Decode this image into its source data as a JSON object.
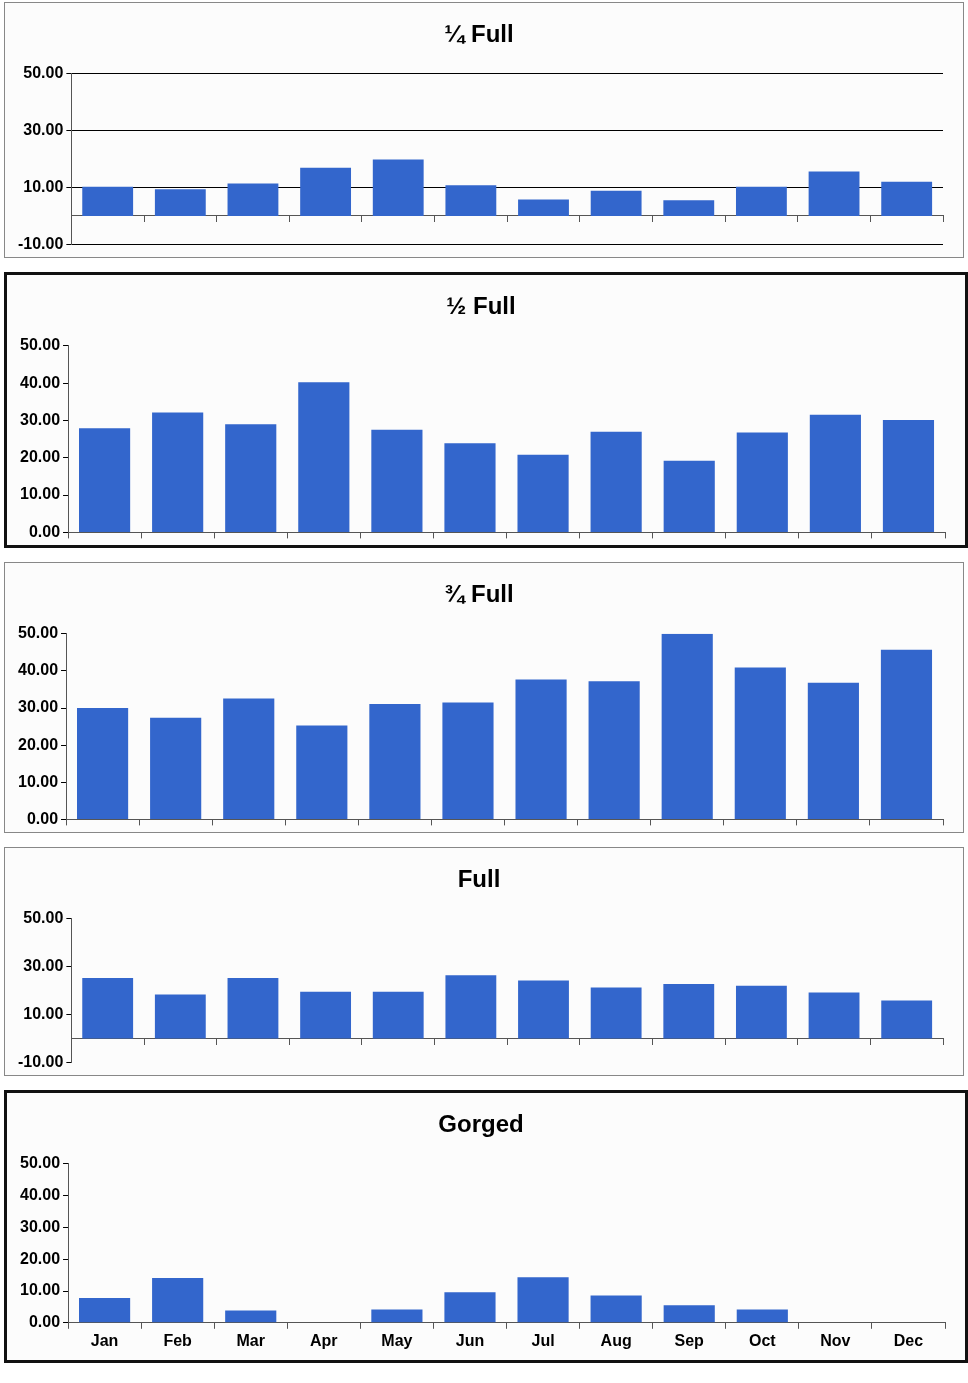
{
  "chart_data": [
    {
      "type": "bar",
      "title": "¼ Full",
      "categories": [
        null,
        null,
        null,
        null,
        null,
        null,
        null,
        null,
        null,
        null,
        null,
        null
      ],
      "color": "#3366cc",
      "values": [
        10.3,
        9.4,
        11.4,
        17,
        19.9,
        10.8,
        5.8,
        8.9,
        5.5,
        10.3,
        15.6,
        12
      ],
      "ylim": [
        -10,
        50
      ],
      "yticks": [
        {
          "value": -10,
          "label": "-10.00"
        },
        {
          "value": 10,
          "label": "10.00"
        },
        {
          "value": 30,
          "label": "30.00"
        },
        {
          "value": 50,
          "label": "50.00"
        }
      ],
      "grid": "y",
      "tick_labels": "y"
    },
    {
      "type": "bar",
      "title": "½ Full",
      "categories": [
        null,
        null,
        null,
        null,
        null,
        null,
        null,
        null,
        null,
        null,
        null,
        null
      ],
      "color": "#3366cc",
      "values": [
        27.9,
        32.1,
        29,
        40.2,
        27.5,
        23.9,
        20.8,
        27,
        19.2,
        26.8,
        31.5,
        30.1
      ],
      "ylim": [
        0,
        50
      ],
      "yticks": [
        {
          "value": 0,
          "label": "0.00"
        },
        {
          "value": 10,
          "label": "10.00"
        },
        {
          "value": 20,
          "label": "20.00"
        },
        {
          "value": 30,
          "label": "30.00"
        },
        {
          "value": 40,
          "label": "40.00"
        },
        {
          "value": 50,
          "label": "50.00"
        }
      ],
      "tick_labels": "y"
    },
    {
      "type": "bar",
      "title": "¾ Full",
      "categories": [
        null,
        null,
        null,
        null,
        null,
        null,
        null,
        null,
        null,
        null,
        null,
        null
      ],
      "color": "#3366cc",
      "values": [
        30,
        27.4,
        32.6,
        25.3,
        31.1,
        31.5,
        37.7,
        37.2,
        50,
        40.9,
        36.8,
        45.7
      ],
      "ylim": [
        0,
        50
      ],
      "yticks": [
        {
          "value": 0,
          "label": "0.00"
        },
        {
          "value": 10,
          "label": "10.00"
        },
        {
          "value": 20,
          "label": "20.00"
        },
        {
          "value": 30,
          "label": "30.00"
        },
        {
          "value": 40,
          "label": "40.00"
        },
        {
          "value": 50,
          "label": "50.00"
        }
      ],
      "tick_labels": "y"
    },
    {
      "type": "bar",
      "title": "Full",
      "categories": [
        null,
        null,
        null,
        null,
        null,
        null,
        null,
        null,
        null,
        null,
        null,
        null
      ],
      "color": "#3366cc",
      "values": [
        25.3,
        18.4,
        25.3,
        19.5,
        19.5,
        26.4,
        24.2,
        21.3,
        22.8,
        22,
        19.2,
        15.9
      ],
      "ylim": [
        -10,
        50
      ],
      "yticks": [
        {
          "value": -10,
          "label": "-10.00"
        },
        {
          "value": 10,
          "label": "10.00"
        },
        {
          "value": 30,
          "label": "30.00"
        },
        {
          "value": 50,
          "label": "50.00"
        }
      ],
      "tick_labels": "y"
    },
    {
      "type": "bar",
      "title": "Gorged",
      "categories": [
        "Jan",
        "Feb",
        "Mar",
        "Apr",
        "May",
        "Jun",
        "Jul",
        "Aug",
        "Sep",
        "Oct",
        "Nov",
        "Dec"
      ],
      "color": "#3366cc",
      "values": [
        7.8,
        14.1,
        3.9,
        0,
        4.2,
        9.6,
        14.3,
        8.6,
        5.5,
        4.2,
        0,
        0
      ],
      "ylim": [
        0,
        50
      ],
      "yticks": [
        {
          "value": 0,
          "label": "0.00"
        },
        {
          "value": 10,
          "label": "10.00"
        },
        {
          "value": 20,
          "label": "20.00"
        },
        {
          "value": 30,
          "label": "30.00"
        },
        {
          "value": 40,
          "label": "40.00"
        },
        {
          "value": 50,
          "label": "50.00"
        }
      ]
    }
  ]
}
